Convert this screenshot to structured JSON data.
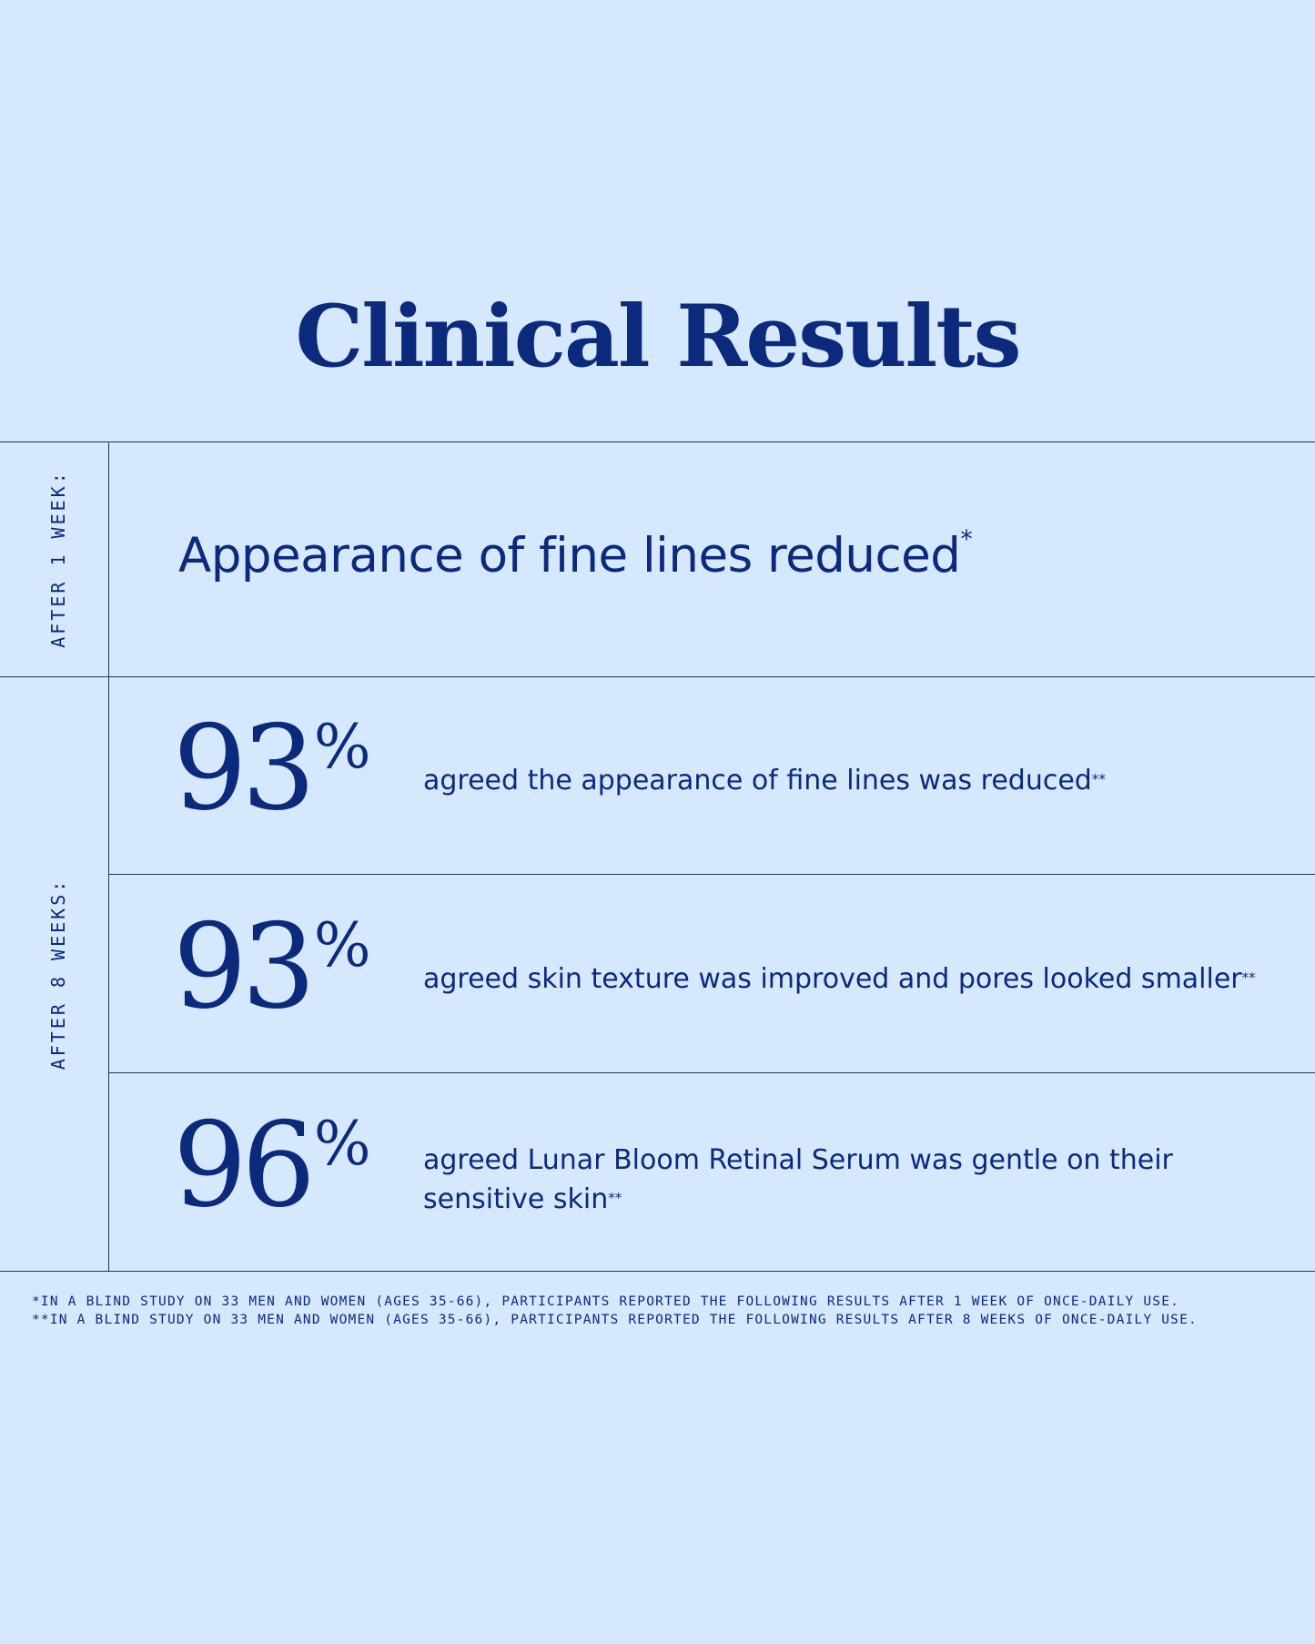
{
  "title": "Clinical Results",
  "sections": [
    {
      "label": "AFTER 1 WEEK:",
      "items": [
        {
          "text": "Appearance of fine lines reduced",
          "note": "*"
        }
      ]
    },
    {
      "label": "AFTER 8 WEEKS:",
      "items": [
        {
          "number": "93",
          "unit": "%",
          "text": "agreed the appearance of fine lines was reduced",
          "note": "**"
        },
        {
          "number": "93",
          "unit": "%",
          "text": "agreed skin texture was improved and pores looked smaller",
          "note": "**"
        },
        {
          "number": "96",
          "unit": "%",
          "text": "agreed Lunar Bloom Retinal Serum was gentle on their sensitive skin",
          "note": "**"
        }
      ]
    }
  ],
  "footnotes": [
    "*IN A BLIND STUDY ON 33 MEN AND WOMEN (AGES 35-66), PARTICIPANTS REPORTED THE FOLLOWING RESULTS AFTER 1 WEEK OF ONCE-DAILY USE.",
    "**IN A BLIND STUDY ON 33 MEN AND WOMEN (AGES 35-66), PARTICIPANTS REPORTED THE FOLLOWING RESULTS AFTER 8 WEEKS OF ONCE-DAILY USE."
  ]
}
